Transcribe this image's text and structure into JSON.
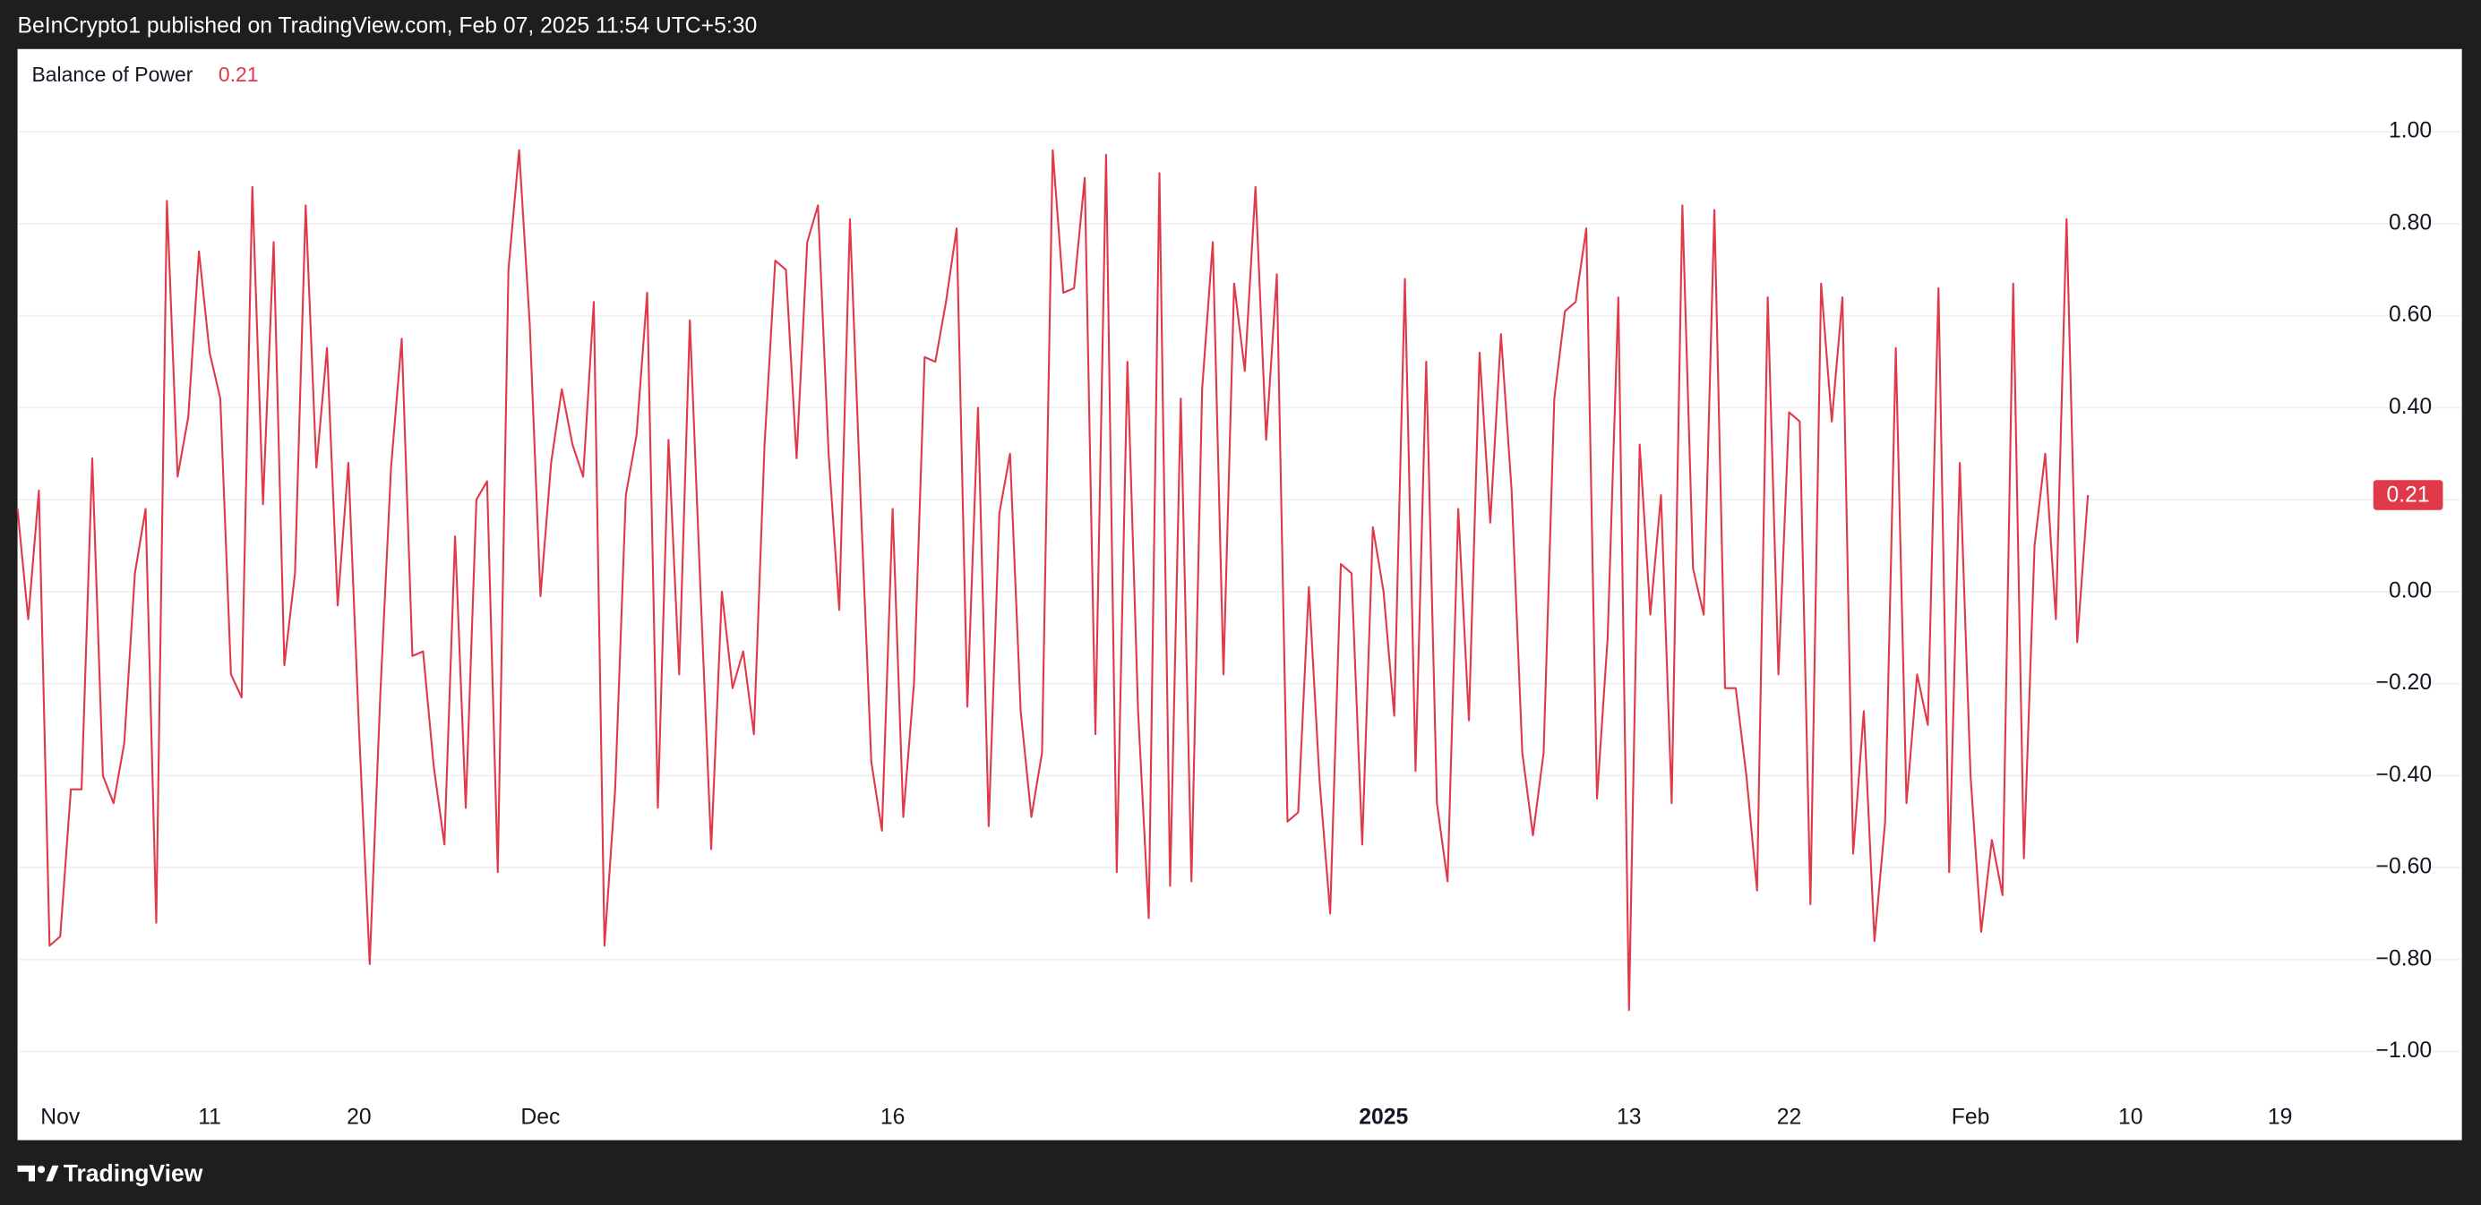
{
  "header": {
    "text": "BeInCrypto1 published on TradingView.com, Feb 07, 2025 11:54 UTC+5:30"
  },
  "footer": {
    "brand": "TradingView"
  },
  "chart_data": {
    "type": "line",
    "last_value": 0.21,
    "grid": true,
    "ylim": [
      -1.1,
      1.18
    ],
    "yticks": [
      {
        "value": 1,
        "label": "1.00"
      },
      {
        "value": 0.8,
        "label": "0.80"
      },
      {
        "value": 0.6,
        "label": "0.60"
      },
      {
        "value": 0.4,
        "label": "0.40"
      },
      {
        "value": 0.2,
        "label": "0.20"
      },
      {
        "value": 0,
        "label": "0.00"
      },
      {
        "value": -0.2,
        "label": "−0.20"
      },
      {
        "value": -0.4,
        "label": "−0.40"
      },
      {
        "value": -0.6,
        "label": "−0.60"
      },
      {
        "value": -0.8,
        "label": "−0.80"
      },
      {
        "value": -1,
        "label": "−1.00"
      }
    ],
    "categories": [
      null,
      null,
      null,
      null,
      "Nov",
      null,
      null,
      null,
      null,
      null,
      null,
      null,
      null,
      null,
      null,
      null,
      null,
      null,
      "11",
      null,
      null,
      null,
      null,
      null,
      null,
      null,
      null,
      null,
      null,
      null,
      null,
      null,
      "20",
      null,
      null,
      null,
      null,
      null,
      null,
      null,
      null,
      null,
      null,
      null,
      null,
      null,
      null,
      null,
      null,
      "Dec",
      null,
      null,
      null,
      null,
      null,
      null,
      null,
      null,
      null,
      null,
      null,
      null,
      null,
      null,
      null,
      null,
      null,
      null,
      null,
      null,
      null,
      null,
      null,
      null,
      null,
      null,
      null,
      null,
      null,
      null,
      null,
      null,
      "16",
      null,
      null,
      null,
      null,
      null,
      null,
      null,
      null,
      null,
      null,
      null,
      null,
      null,
      null,
      null,
      null,
      null,
      null,
      null,
      null,
      null,
      null,
      null,
      null,
      null,
      null,
      null,
      null,
      null,
      null,
      null,
      null,
      null,
      null,
      null,
      null,
      null,
      null,
      null,
      null,
      null,
      null,
      null,
      null,
      null,
      "2025",
      null,
      null,
      null,
      null,
      null,
      null,
      null,
      null,
      null,
      null,
      null,
      null,
      null,
      null,
      null,
      null,
      null,
      null,
      null,
      null,
      null,
      null,
      "13",
      null,
      null,
      null,
      null,
      null,
      null,
      null,
      null,
      null,
      null,
      null,
      null,
      null,
      null,
      "22",
      null,
      null,
      null,
      null,
      null,
      null,
      null,
      null,
      null,
      null,
      null,
      null,
      null,
      null,
      null,
      null,
      "Feb",
      null,
      null,
      null,
      null,
      null,
      null,
      null,
      null,
      null,
      null,
      null,
      null,
      null,
      null,
      "10",
      null,
      null,
      null,
      null,
      null,
      null,
      null,
      null,
      null,
      null,
      null,
      null,
      null,
      "19",
      null,
      null,
      null,
      null,
      null,
      null,
      null,
      null
    ],
    "series": [
      {
        "name": "Balance of Power",
        "color": "#e03a4a",
        "values": [
          0.18,
          -0.06,
          0.22,
          -0.77,
          -0.75,
          -0.43,
          -0.43,
          0.29,
          -0.4,
          -0.46,
          -0.33,
          0.04,
          0.18,
          -0.72,
          0.85,
          0.25,
          0.38,
          0.74,
          0.52,
          0.42,
          -0.18,
          -0.23,
          0.88,
          0.19,
          0.76,
          -0.16,
          0.04,
          0.84,
          0.27,
          0.53,
          -0.03,
          0.28,
          -0.3,
          -0.81,
          -0.22,
          0.27,
          0.55,
          -0.14,
          -0.13,
          -0.38,
          -0.55,
          0.12,
          -0.47,
          0.2,
          0.24,
          -0.61,
          0.7,
          0.96,
          0.58,
          -0.01,
          0.28,
          0.44,
          0.32,
          0.25,
          0.63,
          -0.77,
          -0.43,
          0.21,
          0.34,
          0.65,
          -0.47,
          0.33,
          -0.18,
          0.59,
          0,
          -0.56,
          0,
          -0.21,
          -0.13,
          -0.31,
          0.32,
          0.72,
          0.7,
          0.29,
          0.76,
          0.84,
          0.3,
          -0.04,
          0.81,
          0.2,
          -0.37,
          -0.52,
          0.18,
          -0.49,
          -0.2,
          0.51,
          0.5,
          0.63,
          0.79,
          -0.25,
          0.4,
          -0.51,
          0.17,
          0.3,
          -0.26,
          -0.49,
          -0.35,
          0.96,
          0.65,
          0.66,
          0.9,
          -0.31,
          0.95,
          -0.61,
          0.5,
          -0.26,
          -0.71,
          0.91,
          -0.64,
          0.42,
          -0.63,
          0.44,
          0.76,
          -0.18,
          0.67,
          0.48,
          0.88,
          0.33,
          0.69,
          -0.5,
          -0.48,
          0.01,
          -0.41,
          -0.7,
          0.06,
          0.04,
          -0.55,
          0.14,
          0,
          -0.27,
          0.68,
          -0.39,
          0.5,
          -0.46,
          -0.63,
          0.18,
          -0.28,
          0.52,
          0.15,
          0.56,
          0.22,
          -0.35,
          -0.53,
          -0.35,
          0.42,
          0.61,
          0.63,
          0.79,
          -0.45,
          -0.1,
          0.64,
          -0.91,
          0.32,
          -0.05,
          0.21,
          -0.46,
          0.84,
          0.05,
          -0.05,
          0.83,
          -0.21,
          -0.21,
          -0.4,
          -0.65,
          0.64,
          -0.18,
          0.39,
          0.37,
          -0.68,
          0.67,
          0.37,
          0.64,
          -0.57,
          -0.26,
          -0.76,
          -0.5,
          0.53,
          -0.46,
          -0.18,
          -0.29,
          0.66,
          -0.61,
          0.28,
          -0.4,
          -0.74,
          -0.54,
          -0.66,
          0.67,
          -0.58,
          0.1,
          0.3,
          -0.06,
          0.81,
          -0.11,
          0.21,
          null,
          null,
          null,
          null,
          null,
          null,
          null,
          null,
          null,
          null,
          null,
          null,
          null,
          null,
          null,
          null,
          null,
          null,
          null,
          null,
          null,
          null,
          null,
          null,
          null,
          null
        ]
      }
    ]
  }
}
